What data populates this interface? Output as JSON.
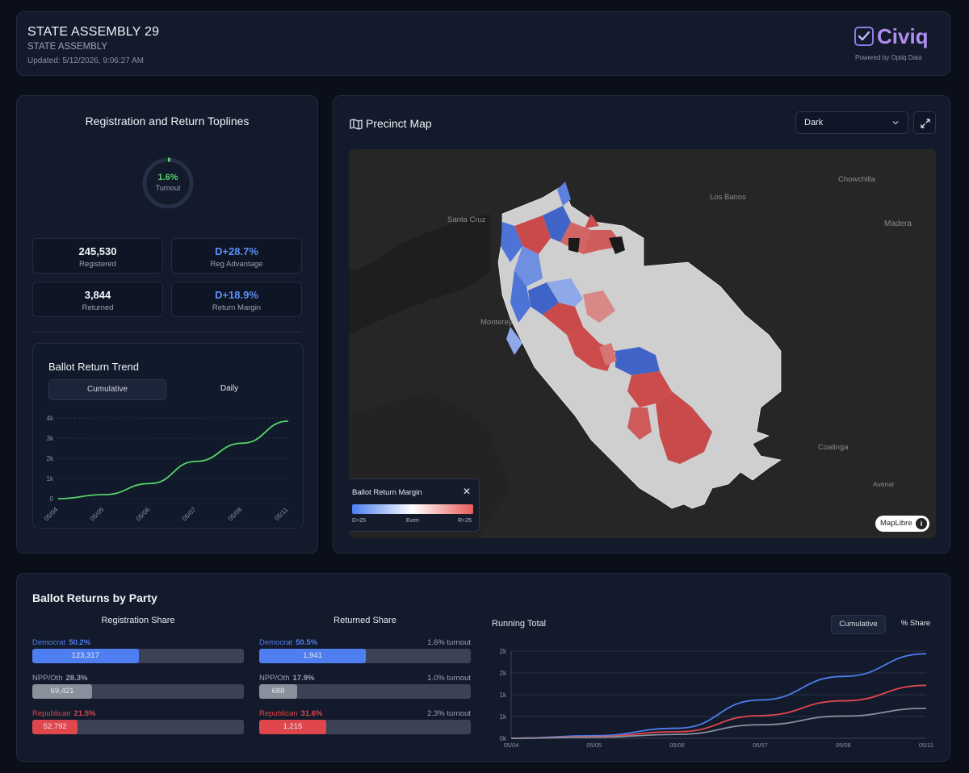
{
  "header": {
    "title": "STATE ASSEMBLY 29",
    "subtitle": "STATE ASSEMBLY",
    "updated": "Updated: 5/12/2026, 9:06:27 AM",
    "logo_text": "Civiq",
    "logo_sub": "Powered by Optiq Data"
  },
  "toplines": {
    "title": "Registration and Return Toplines",
    "turnout_value": "1.6%",
    "turnout_fraction": 0.016,
    "turnout_label": "Turnout",
    "registered_value": "245,530",
    "registered_label": "Registered",
    "reg_adv_value": "D+28.7%",
    "reg_adv_label": "Reg Advantage",
    "returned_value": "3,844",
    "returned_label": "Returned",
    "ret_margin_value": "D+18.9%",
    "ret_margin_label": "Return Margin"
  },
  "trend": {
    "title": "Ballot Return Trend",
    "tab_cumulative": "Cumulative",
    "tab_daily": "Daily"
  },
  "map": {
    "title": "Precinct Map",
    "style_select": "Dark",
    "legend_title": "Ballot Return Margin",
    "legend_left": "D+25",
    "legend_mid": "Even",
    "legend_right": "R+25",
    "attribution": "MapLibre",
    "places": [
      "Chowchilla",
      "Los Banos",
      "Santa Cruz",
      "Madera",
      "Monterey",
      "Coalinga",
      "Avenal"
    ]
  },
  "party": {
    "title": "Ballot Returns by Party",
    "reg_title": "Registration Share",
    "ret_title": "Returned Share",
    "registration": [
      {
        "name": "Democrat",
        "pct": "50.2%",
        "count": "123,317",
        "share": 0.502,
        "color": "#4f7ef0"
      },
      {
        "name": "NPP/Oth",
        "pct": "28.3%",
        "count": "69,421",
        "share": 0.283,
        "color": "#8a8f9c"
      },
      {
        "name": "Republican",
        "pct": "21.5%",
        "count": "52,792",
        "share": 0.215,
        "color": "#e0474c"
      }
    ],
    "returned": [
      {
        "name": "Democrat",
        "pct": "50.5%",
        "count": "1,941",
        "share": 0.505,
        "turnout": "1.6% turnout",
        "color": "#4f7ef0"
      },
      {
        "name": "NPP/Oth",
        "pct": "17.9%",
        "count": "688",
        "share": 0.179,
        "turnout": "1.0% turnout",
        "color": "#8a8f9c"
      },
      {
        "name": "Republican",
        "pct": "31.6%",
        "count": "1,215",
        "share": 0.316,
        "turnout": "2.3% turnout",
        "color": "#e0474c"
      }
    ],
    "running_title": "Running Total",
    "btn_cumulative": "Cumulative",
    "btn_share": "% Share"
  },
  "chart_data": [
    {
      "type": "line",
      "title": "Ballot Return Trend",
      "x": [
        "05/04",
        "05/05",
        "05/06",
        "05/07",
        "05/08",
        "05/11"
      ],
      "yticks": [
        "0",
        "1k",
        "2k",
        "3k",
        "4k"
      ],
      "ylim": [
        0,
        4000
      ],
      "series": [
        {
          "values": [
            0,
            200,
            750,
            1850,
            2750,
            3844
          ],
          "color": "#57d36a"
        }
      ]
    },
    {
      "type": "line",
      "title": "Running Total",
      "x": [
        "05/04",
        "05/05",
        "05/06",
        "05/07",
        "05/08",
        "05/11"
      ],
      "yticks": [
        "0k",
        "1k",
        "1k",
        "2k",
        "2k"
      ],
      "ylim": [
        0,
        2000
      ],
      "series": [
        {
          "values": [
            0,
            60,
            230,
            880,
            1420,
            1941
          ],
          "color": "#4f7ef0"
        },
        {
          "values": [
            0,
            40,
            150,
            520,
            860,
            1215
          ],
          "color": "#e0474c"
        },
        {
          "values": [
            0,
            25,
            90,
            310,
            510,
            688
          ],
          "color": "#8a8f9c"
        }
      ]
    }
  ],
  "colors": {
    "background": "#0b0f1a",
    "card": "#121a2b",
    "democrat": "#4f7ef0",
    "republican": "#e0474c",
    "other": "#8a8f9c",
    "turnout": "#57d36a"
  }
}
